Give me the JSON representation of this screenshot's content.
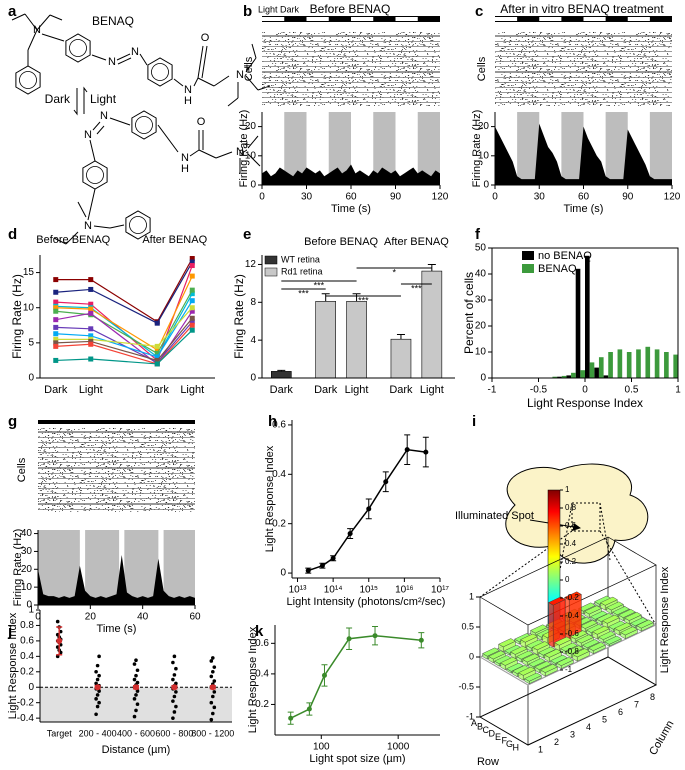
{
  "panels": [
    "a",
    "b",
    "c",
    "d",
    "e",
    "f",
    "g",
    "h",
    "i",
    "j",
    "k"
  ],
  "structure": {
    "name": "BENAQ",
    "forward": "Dark",
    "reverse": "Light",
    "atoms": [
      "N",
      "N",
      "N",
      "O",
      "N",
      "H",
      "N",
      "+",
      "N",
      "N",
      "O",
      "N",
      "H",
      "N",
      "+",
      "N"
    ]
  },
  "chart_data": [
    {
      "type": "area",
      "title": "Before BENAQ",
      "stimulus_label": "Light Dark",
      "raster_label": "Cells",
      "ylabel": "Firing Rate (Hz)",
      "xlabel": "Time (s)",
      "stimulus_bar": true,
      "x": [
        0,
        3,
        6,
        9,
        12,
        15,
        18,
        21,
        24,
        27,
        30,
        33,
        36,
        39,
        42,
        45,
        48,
        51,
        54,
        57,
        60,
        63,
        66,
        69,
        72,
        75,
        78,
        81,
        84,
        87,
        90,
        93,
        96,
        99,
        102,
        105,
        108,
        111,
        114,
        117,
        120
      ],
      "values": [
        4,
        5,
        3,
        4,
        6,
        5,
        4,
        3,
        5,
        4,
        6,
        5,
        4,
        5,
        3,
        4,
        5,
        6,
        4,
        5,
        7,
        4,
        5,
        4,
        3,
        5,
        4,
        6,
        5,
        4,
        5,
        3,
        4,
        5,
        6,
        4,
        5,
        4,
        3,
        5,
        4
      ],
      "color": "#000000",
      "shade_color": "#bdbdbd",
      "shaded": [
        [
          15,
          30
        ],
        [
          45,
          60
        ],
        [
          75,
          90
        ],
        [
          105,
          120
        ]
      ],
      "xlim": [
        0,
        120
      ],
      "xticks": [
        0,
        30,
        60,
        90,
        120
      ],
      "ylim": [
        0,
        25
      ],
      "yticks": [
        0,
        10,
        20
      ]
    },
    {
      "type": "area",
      "title": "After in vitro BENAQ treatment",
      "raster_label": "Cells",
      "ylabel": "Firing Rate (Hz)",
      "xlabel": "Time (s)",
      "stimulus_bar": true,
      "x": [
        0,
        3,
        6,
        9,
        12,
        15,
        18,
        21,
        24,
        27,
        30,
        33,
        36,
        39,
        42,
        45,
        48,
        51,
        54,
        57,
        60,
        63,
        66,
        69,
        72,
        75,
        78,
        81,
        84,
        87,
        90,
        93,
        96,
        99,
        102,
        105,
        108,
        111,
        114,
        117,
        120
      ],
      "values": [
        20,
        17,
        14,
        11,
        8,
        3,
        2,
        2,
        2,
        2,
        21,
        17,
        13,
        11,
        8,
        3,
        2,
        2,
        2,
        2,
        20,
        16,
        13,
        10,
        8,
        3,
        2,
        2,
        2,
        2,
        19,
        16,
        13,
        10,
        7,
        3,
        2,
        2,
        2,
        2,
        2
      ],
      "color": "#000000",
      "shade_color": "#bdbdbd",
      "shaded": [
        [
          15,
          30
        ],
        [
          45,
          60
        ],
        [
          75,
          90
        ],
        [
          105,
          120
        ]
      ],
      "xlim": [
        0,
        120
      ],
      "xticks": [
        0,
        30,
        60,
        90,
        120
      ],
      "ylim": [
        0,
        25
      ],
      "yticks": [
        0,
        10,
        20
      ]
    },
    {
      "type": "lines",
      "categories": [
        "Dark",
        "Light",
        "Dark",
        "Light"
      ],
      "group_labels": [
        "Before BENAQ",
        "After BENAQ"
      ],
      "ylabel": "Firing Rate (Hz)",
      "ylim": [
        0,
        17.5
      ],
      "yticks": [
        0,
        5,
        10,
        15
      ],
      "series": [
        {
          "color": "#8b0000",
          "values": [
            14,
            14,
            8,
            17
          ]
        },
        {
          "color": "#1a237e",
          "values": [
            12.2,
            12.6,
            7.8,
            16.5
          ]
        },
        {
          "color": "#e91e63",
          "values": [
            10.8,
            10.5,
            2.5,
            16
          ]
        },
        {
          "color": "#00bcd4",
          "values": [
            10.2,
            10,
            3,
            12
          ]
        },
        {
          "color": "#ff9800",
          "values": [
            10,
            9.8,
            4,
            14.5
          ]
        },
        {
          "color": "#4caf50",
          "values": [
            9.5,
            9,
            3.5,
            12.5
          ]
        },
        {
          "color": "#9c27b0",
          "values": [
            8.3,
            9.2,
            2,
            9.5
          ]
        },
        {
          "color": "#673ab7",
          "values": [
            7.2,
            7,
            2.2,
            8
          ]
        },
        {
          "color": "#03a9f4",
          "values": [
            6.3,
            6,
            3,
            11
          ]
        },
        {
          "color": "#cddc39",
          "values": [
            5.5,
            5.5,
            4.5,
            10
          ]
        },
        {
          "color": "#795548",
          "values": [
            5,
            5.2,
            2.5,
            8.5
          ]
        },
        {
          "color": "#f44336",
          "values": [
            4.5,
            4.8,
            2,
            7.5
          ]
        },
        {
          "color": "#009688",
          "values": [
            2.5,
            2.7,
            2,
            6.8
          ]
        }
      ]
    },
    {
      "type": "bar_error",
      "categories": [
        "Dark",
        "Dark",
        "Light",
        "Dark",
        "Light"
      ],
      "group_labels": [
        "Before BENAQ",
        "After BENAQ"
      ],
      "ylabel": "Firing Rate (Hz)",
      "values": [
        0.7,
        8.1,
        8.1,
        4.1,
        11.3
      ],
      "errors": [
        0.1,
        0.8,
        0.8,
        0.5,
        0.7
      ],
      "legend": [
        {
          "name": "WT retina",
          "color": "#333333"
        },
        {
          "name": "Rd1 retina",
          "color": "#c8c8c8"
        }
      ],
      "bar_series": [
        0,
        1,
        1,
        1,
        1
      ],
      "significance": [
        "***",
        "***",
        "***",
        "*",
        "***"
      ],
      "ylim": [
        0,
        13
      ],
      "yticks": [
        0,
        4,
        8,
        12
      ]
    },
    {
      "type": "histogram",
      "ylabel": "Percent of cells",
      "xlabel": "Light Response Index",
      "bins": [
        -1,
        -0.9,
        -0.8,
        -0.7,
        -0.6,
        -0.5,
        -0.4,
        -0.3,
        -0.2,
        -0.1,
        0,
        0.1,
        0.2,
        0.3,
        0.4,
        0.5,
        0.6,
        0.7,
        0.8,
        0.9,
        1
      ],
      "series": [
        {
          "name": "no BENAQ",
          "color": "#000000",
          "values": [
            0,
            0,
            0,
            0,
            0,
            0,
            0,
            0.5,
            1,
            42,
            47,
            4,
            1,
            0,
            0,
            0,
            0,
            0,
            0,
            0
          ]
        },
        {
          "name": "BENAQ",
          "color": "#3c9a3c",
          "values": [
            0,
            0,
            0,
            0,
            0,
            0,
            0.5,
            0.8,
            2,
            3,
            6,
            8,
            10,
            11,
            10,
            11,
            12,
            11,
            10,
            9
          ]
        }
      ],
      "xlim": [
        -1,
        1
      ],
      "xticks": [
        -1,
        -0.5,
        0,
        0.5,
        1
      ],
      "ylim": [
        0,
        50
      ],
      "yticks": [
        0,
        10,
        20,
        30,
        40,
        50
      ]
    },
    {
      "type": "area",
      "raster_label": "Cells",
      "ylabel": "Firing Rate (Hz)",
      "xlabel": "Time (s)",
      "stimulus_bar": false,
      "x": [
        0,
        2,
        4,
        6,
        8,
        10,
        12,
        14,
        16,
        18,
        20,
        22,
        24,
        26,
        28,
        30,
        32,
        34,
        36,
        38,
        40,
        42,
        44,
        46,
        48,
        50,
        52,
        54,
        56,
        58,
        60
      ],
      "values": [
        20,
        6,
        5,
        5,
        4,
        5,
        4,
        5,
        22,
        8,
        5,
        4,
        5,
        4,
        5,
        6,
        28,
        7,
        5,
        4,
        5,
        4,
        5,
        26,
        8,
        5,
        4,
        5,
        4,
        5,
        4
      ],
      "color": "#000000",
      "shade_color": "#bdbdbd",
      "shaded": [
        [
          0,
          16
        ],
        [
          18,
          31
        ],
        [
          33,
          46
        ],
        [
          48,
          60
        ]
      ],
      "xlim": [
        0,
        60
      ],
      "xticks": [
        0,
        20,
        40,
        60
      ],
      "ylim": [
        0,
        42
      ],
      "yticks": [
        0,
        10,
        20,
        30,
        40
      ]
    },
    {
      "type": "line_error",
      "log_x": true,
      "ylabel": "Light Response Index",
      "xlabel": "Light Intensity (photons/cm²/sec)",
      "x": [
        20000000000000.0,
        50000000000000.0,
        100000000000000.0,
        300000000000000.0,
        1000000000000000.0,
        3000000000000000.0,
        1.2e+16,
        4e+16
      ],
      "values": [
        0.01,
        0.03,
        0.06,
        0.16,
        0.26,
        0.37,
        0.5,
        0.49
      ],
      "errors": [
        0.01,
        0.01,
        0.01,
        0.02,
        0.04,
        0.04,
        0.06,
        0.06
      ],
      "color": "#000000",
      "xlim": [
        7000000000000.0,
        1e+17
      ],
      "xticks": [
        {
          "value": 10000000000000.0,
          "label": "10¹³"
        },
        {
          "value": 100000000000000.0,
          "label": "10¹⁴"
        },
        {
          "value": 1000000000000000.0,
          "label": "10¹⁵"
        },
        {
          "value": 1e+16,
          "label": "10¹⁶"
        },
        {
          "value": 1e+17,
          "label": "10¹⁷"
        }
      ],
      "ylim": [
        -0.02,
        0.62
      ],
      "yticks": [
        0,
        0.2,
        0.4,
        0.6
      ]
    },
    {
      "type": "bar3d",
      "annotation": "Illuminated Spot",
      "zlabel": "Light Response Index",
      "row_label": "Row",
      "column_label": "Column",
      "rows": [
        "A",
        "B",
        "C",
        "D",
        "E",
        "F",
        "G",
        "H"
      ],
      "columns": [
        1,
        2,
        3,
        4,
        5,
        6,
        7,
        8
      ],
      "values": [
        [
          0.05,
          0.08,
          0.04,
          0.06,
          0.03,
          0.07,
          0.05,
          0.04
        ],
        [
          0.06,
          0.03,
          0.09,
          0.05,
          0.07,
          0.04,
          0.06,
          0.08
        ],
        [
          0.04,
          0.07,
          0.05,
          0.1,
          0.08,
          0.05,
          0.03,
          0.06
        ],
        [
          0.07,
          0.05,
          0.08,
          0.7,
          0.66,
          0.06,
          0.05,
          0.04
        ],
        [
          0.03,
          0.06,
          0.05,
          0.09,
          0.07,
          0.05,
          0.08,
          0.05
        ],
        [
          0.05,
          0.04,
          0.07,
          0.05,
          0.06,
          0.08,
          0.04,
          0.06
        ],
        [
          0.08,
          0.05,
          0.03,
          0.06,
          0.04,
          0.05,
          0.07,
          0.03
        ],
        [
          0.04,
          0.06,
          0.05,
          0.07,
          0.05,
          0.03,
          0.06,
          0.05
        ]
      ],
      "zlim": [
        -1,
        1
      ],
      "zticks": [
        -1,
        -0.5,
        0,
        0.5,
        1
      ],
      "colorbar_ticks": [
        -1,
        -0.8,
        -0.6,
        -0.4,
        -0.2,
        0,
        0.2,
        0.4,
        0.6,
        0.8,
        1
      ]
    },
    {
      "type": "strip",
      "categories": [
        "Target",
        "200 - 400",
        "400 - 600",
        "600 - 800",
        "800 - 1200"
      ],
      "ylabel": "Light Response Index",
      "xlabel": "Distance (µm)",
      "points": [
        [
          0.85,
          0.78,
          0.72,
          0.68,
          0.65,
          0.62,
          0.6,
          0.58,
          0.55,
          0.52,
          0.48,
          0.45,
          0.4
        ],
        [
          -0.35,
          -0.25,
          -0.2,
          -0.15,
          -0.1,
          -0.05,
          -0.02,
          0,
          0.02,
          0.05,
          0.1,
          0.15,
          0.2,
          0.28,
          0.4
        ],
        [
          -0.38,
          -0.3,
          -0.22,
          -0.15,
          -0.1,
          -0.05,
          0,
          0.03,
          0.06,
          0.1,
          0.15,
          0.22,
          0.3,
          0.35
        ],
        [
          -0.4,
          -0.32,
          -0.25,
          -0.18,
          -0.12,
          -0.06,
          -0.02,
          0.02,
          0.05,
          0.1,
          0.16,
          0.24,
          0.32,
          0.4
        ],
        [
          -0.42,
          -0.34,
          -0.26,
          -0.2,
          -0.12,
          -0.06,
          0,
          0.04,
          0.08,
          0.14,
          0.2,
          0.26,
          0.34,
          0.38
        ]
      ],
      "means": [
        0.6,
        0,
        0,
        0,
        0
      ],
      "errors": [
        0.18,
        0.02,
        0.02,
        0.02,
        0.02
      ],
      "mean_color": "#d32f2f",
      "ylim": [
        -0.45,
        1
      ],
      "yticks": [
        -0.4,
        -0.2,
        0,
        0.2,
        0.4,
        0.6,
        0.8,
        1
      ]
    },
    {
      "type": "line_error",
      "log_x": true,
      "ylabel": "Light Response Index",
      "xlabel": "Light spot size (µm)",
      "x": [
        40,
        70,
        110,
        230,
        500,
        2000
      ],
      "values": [
        0.11,
        0.17,
        0.39,
        0.63,
        0.65,
        0.62
      ],
      "errors": [
        0.04,
        0.04,
        0.07,
        0.07,
        0.06,
        0.05
      ],
      "color": "#3a8a2a",
      "xlim": [
        25,
        3500
      ],
      "xticks": [
        100,
        1000
      ],
      "ylim": [
        0,
        0.72
      ],
      "yticks": [
        0.2,
        0.4,
        0.6
      ]
    }
  ]
}
